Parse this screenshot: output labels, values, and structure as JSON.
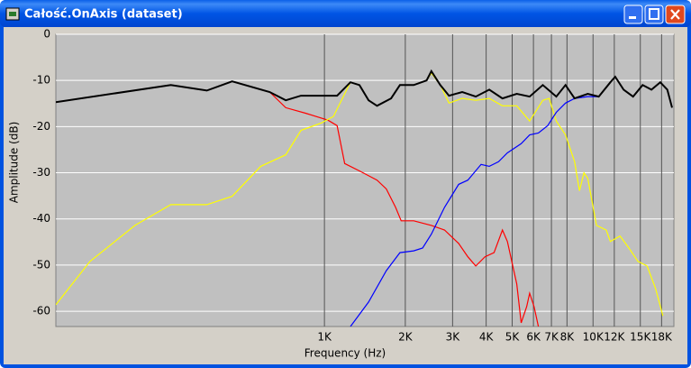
{
  "window": {
    "title": "Całość.OnAxis (dataset)"
  },
  "chart_data": {
    "type": "line",
    "xlabel": "Frequency (Hz)",
    "ylabel": "Amplitude (dB)",
    "xscale": "log",
    "grid": true,
    "background": "#c0c0c0",
    "xlim": [
      100,
      20000
    ],
    "ylim": [
      -63.3,
      0
    ],
    "yticks": [
      0,
      -10,
      -20,
      -30,
      -40,
      -50,
      -60
    ],
    "xticks": [
      {
        "value": 1000,
        "label": "1K"
      },
      {
        "value": 2000,
        "label": "2K"
      },
      {
        "value": 3000,
        "label": "3K"
      },
      {
        "value": 4000,
        "label": "4K"
      },
      {
        "value": 5000,
        "label": "5K"
      },
      {
        "value": 6000,
        "label": "6K"
      },
      {
        "value": 7000,
        "label": "7K"
      },
      {
        "value": 8000,
        "label": "8K"
      },
      {
        "value": 10000,
        "label": "10K"
      },
      {
        "value": 12000,
        "label": "12K"
      },
      {
        "value": 15000,
        "label": "15K"
      },
      {
        "value": 18000,
        "label": "18K"
      }
    ],
    "series": [
      {
        "color": "#ff0000",
        "x": [
          100,
          268,
          365,
          453,
          625,
          718,
          850,
          1030,
          1115,
          1190,
          1350,
          1570,
          1700,
          1840,
          1930,
          2150,
          2500,
          2800,
          3160,
          3420,
          3660,
          3960,
          4280,
          4600,
          4800,
          5200,
          5400,
          5660,
          5810,
          6030,
          6260
        ],
        "values": [
          -14.7,
          -11,
          -12.2,
          -10.2,
          -12.5,
          -15.9,
          -17.1,
          -18.6,
          -19.8,
          -28,
          -29.6,
          -31.6,
          -33.5,
          -37.5,
          -40.4,
          -40.4,
          -41.4,
          -42.4,
          -45.3,
          -48.2,
          -50.2,
          -48.2,
          -47.3,
          -42.4,
          -44.9,
          -54.1,
          -62.5,
          -59,
          -56.1,
          -59,
          -63.3
        ]
      },
      {
        "color": "#ffff00",
        "x": [
          100,
          134,
          197,
          268,
          365,
          453,
          579,
          718,
          818,
          975,
          1080,
          1190,
          1250,
          1350,
          1460,
          1570,
          1770,
          1910,
          2150,
          2400,
          2500,
          2700,
          2910,
          3260,
          3660,
          4110,
          4600,
          5200,
          5810,
          6500,
          6860,
          7300,
          7900,
          8540,
          8900,
          9250,
          9560,
          10300,
          11200,
          11600,
          12600,
          13600,
          14700,
          15900,
          17100,
          18200
        ],
        "values": [
          -58.6,
          -49.2,
          -41.4,
          -36.9,
          -36.9,
          -35.1,
          -28.6,
          -26.1,
          -20.8,
          -19.2,
          -17.8,
          -12.9,
          -10.4,
          -11,
          -14.3,
          -15.5,
          -13.9,
          -11,
          -11,
          -10,
          -8.4,
          -11,
          -14.9,
          -13.9,
          -14.3,
          -13.9,
          -15.5,
          -15.5,
          -18.8,
          -14.3,
          -13.9,
          -18.8,
          -21.8,
          -27.6,
          -33.9,
          -30,
          -31.2,
          -41.4,
          -42.4,
          -44.9,
          -43.7,
          -46.3,
          -49.2,
          -50.2,
          -55.1,
          -61
        ]
      },
      {
        "color": "#0000ff",
        "x": [
          1250,
          1460,
          1700,
          1910,
          2150,
          2320,
          2500,
          2800,
          3160,
          3420,
          3830,
          4110,
          4450,
          4800,
          5400,
          5810,
          6260,
          6780,
          7300,
          7900,
          8540,
          9560,
          10500
        ],
        "values": [
          -63.3,
          -58,
          -51.2,
          -47.3,
          -46.9,
          -46.3,
          -43.3,
          -37.5,
          -32.5,
          -31.6,
          -28.2,
          -28.6,
          -27.6,
          -25.7,
          -23.7,
          -21.8,
          -21.4,
          -19.8,
          -16.9,
          -14.9,
          -13.9,
          -13.5,
          -13.5
        ]
      },
      {
        "color": "#000000",
        "x": [
          100,
          268,
          365,
          453,
          625,
          718,
          818,
          1115,
          1250,
          1350,
          1460,
          1570,
          1770,
          1910,
          2150,
          2400,
          2500,
          2700,
          2910,
          3260,
          3660,
          4110,
          4600,
          5200,
          5810,
          6500,
          7300,
          7900,
          8540,
          9560,
          10500,
          11600,
          12100,
          13000,
          14100,
          15300,
          16500,
          17800,
          18900,
          19700
        ],
        "values": [
          -14.7,
          -11,
          -12.2,
          -10.2,
          -12.5,
          -14.3,
          -13.3,
          -13.3,
          -10.4,
          -11,
          -14.3,
          -15.5,
          -13.9,
          -11,
          -11,
          -10,
          -8,
          -11,
          -13.3,
          -12.5,
          -13.5,
          -12,
          -13.9,
          -12.9,
          -13.5,
          -11,
          -13.5,
          -11,
          -13.9,
          -12.9,
          -13.5,
          -10.4,
          -9.2,
          -12,
          -13.5,
          -11,
          -12,
          -10.4,
          -12,
          -15.9
        ]
      }
    ]
  }
}
